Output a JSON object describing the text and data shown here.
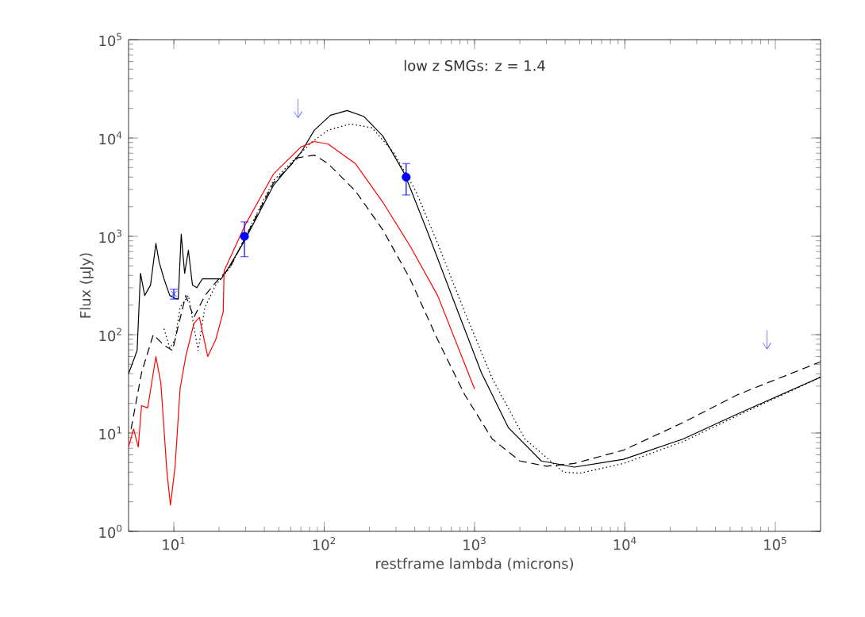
{
  "chart_data": {
    "type": "line",
    "title": "low z SMGs: z = 1.4",
    "xlabel": "restframe lambda (microns)",
    "ylabel": "Flux (μJy)",
    "log": "xy",
    "xlim": [
      5,
      200000
    ],
    "ylim": [
      1,
      100000
    ],
    "xticks": [
      {
        "value": 10,
        "label": "10$^{1}$"
      },
      {
        "value": 100,
        "label": "10$^{2}$"
      },
      {
        "value": 1000,
        "label": "10$^{3}$"
      },
      {
        "value": 10000,
        "label": "10$^{4}$"
      },
      {
        "value": 100000,
        "label": "10$^{5}$"
      }
    ],
    "yticks": [
      {
        "value": 1,
        "label": "10$^{0}$"
      },
      {
        "value": 10,
        "label": "10$^{1}$"
      },
      {
        "value": 100,
        "label": "10$^{2}$"
      },
      {
        "value": 1000,
        "label": "10$^{3}$"
      },
      {
        "value": 10000,
        "label": "10$^{4}$"
      },
      {
        "value": 100000,
        "label": "10$^{5}$"
      }
    ],
    "series": [
      {
        "color": "#000000",
        "line_style": "solid",
        "x": [
          5,
          5.7,
          6.0,
          6.4,
          7.0,
          7.6,
          8.0,
          8.6,
          9.4,
          10.2,
          10.7,
          11.2,
          11.8,
          12.5,
          13.3,
          14.2,
          15.5,
          18.3,
          20.7,
          23.5,
          29.5,
          46,
          70,
          86,
          110,
          142,
          183,
          245,
          343,
          480,
          728,
          1110,
          1680,
          2780,
          4600,
          9800,
          24400,
          56000,
          200000
        ],
        "values": [
          40,
          69,
          420,
          250,
          320,
          850,
          540,
          370,
          250,
          234,
          230,
          1050,
          420,
          720,
          320,
          300,
          370,
          370,
          370,
          500,
          900,
          3300,
          7100,
          12000,
          17000,
          19000,
          16600,
          10500,
          4300,
          1170,
          220,
          41,
          11.3,
          5.2,
          4.5,
          5.4,
          8.7,
          15.6,
          37
        ]
      },
      {
        "color": "#000000",
        "line_style": "dotted",
        "x": [
          8.6,
          9.4,
          10.2,
          11.0,
          12.5,
          14.5,
          16.1,
          19,
          23.5,
          46,
          82,
          106,
          149,
          208,
          290,
          406,
          568,
          860,
          1310,
          2160,
          3900,
          5000,
          9800,
          24400,
          56000,
          200000
        ],
        "values": [
          115,
          73,
          89,
          190,
          250,
          69,
          190,
          320,
          475,
          3700,
          9000,
          12000,
          13900,
          12700,
          7100,
          2900,
          850,
          170,
          36,
          8.7,
          4.0,
          3.9,
          4.9,
          8.2,
          15,
          37
        ]
      },
      {
        "color": "#000000",
        "line_style": "dashed",
        "x": [
          5.2,
          6.1,
          7.3,
          8.6,
          9.8,
          10.6,
          12.0,
          13.6,
          16.1,
          19.9,
          23.5,
          46,
          67,
          86,
          106,
          161,
          245,
          372,
          568,
          860,
          1310,
          2000,
          3000,
          4600,
          9800,
          24400,
          56000,
          200000
        ],
        "values": [
          11,
          41,
          100,
          78,
          69,
          115,
          250,
          150,
          250,
          370,
          475,
          3500,
          6300,
          6700,
          5500,
          2900,
          1170,
          370,
          89,
          24.5,
          8.7,
          5.2,
          4.6,
          4.9,
          6.7,
          12.8,
          24.5,
          53
        ]
      },
      {
        "color": "#ff0000",
        "line_style": "solid",
        "x": [
          5,
          5.4,
          5.8,
          6.1,
          6.7,
          7.6,
          8.2,
          9.0,
          9.5,
          10.2,
          11.0,
          12.0,
          13.6,
          14.8,
          16.8,
          19,
          21.3,
          21.6,
          30,
          46,
          70,
          86,
          106,
          161,
          245,
          372,
          568,
          1000
        ],
        "values": [
          7.2,
          11,
          7.2,
          19,
          18,
          60,
          32,
          4.0,
          1.85,
          4.6,
          28,
          60,
          130,
          150,
          60,
          89,
          170,
          445,
          1330,
          4300,
          8100,
          9200,
          8700,
          5500,
          2230,
          800,
          250,
          28
        ]
      },
      {
        "type": "scatter",
        "color": "#0000ff",
        "marker": "circle",
        "x": [
          29.5,
          351
        ],
        "values": [
          1000,
          4000
        ],
        "errors": [
          [
            620,
            1400
          ],
          [
            2630,
            5500
          ]
        ]
      },
      {
        "type": "scatter",
        "color": "#0000ff",
        "marker": "cross",
        "x": [
          10
        ],
        "values": [
          260
        ],
        "errors": [
          [
            230,
            290
          ]
        ]
      },
      {
        "type": "scatter",
        "color": "#8080ff",
        "x": [
          67,
          88000
        ],
        "values": [
          20000,
          89
        ]
      }
    ]
  }
}
